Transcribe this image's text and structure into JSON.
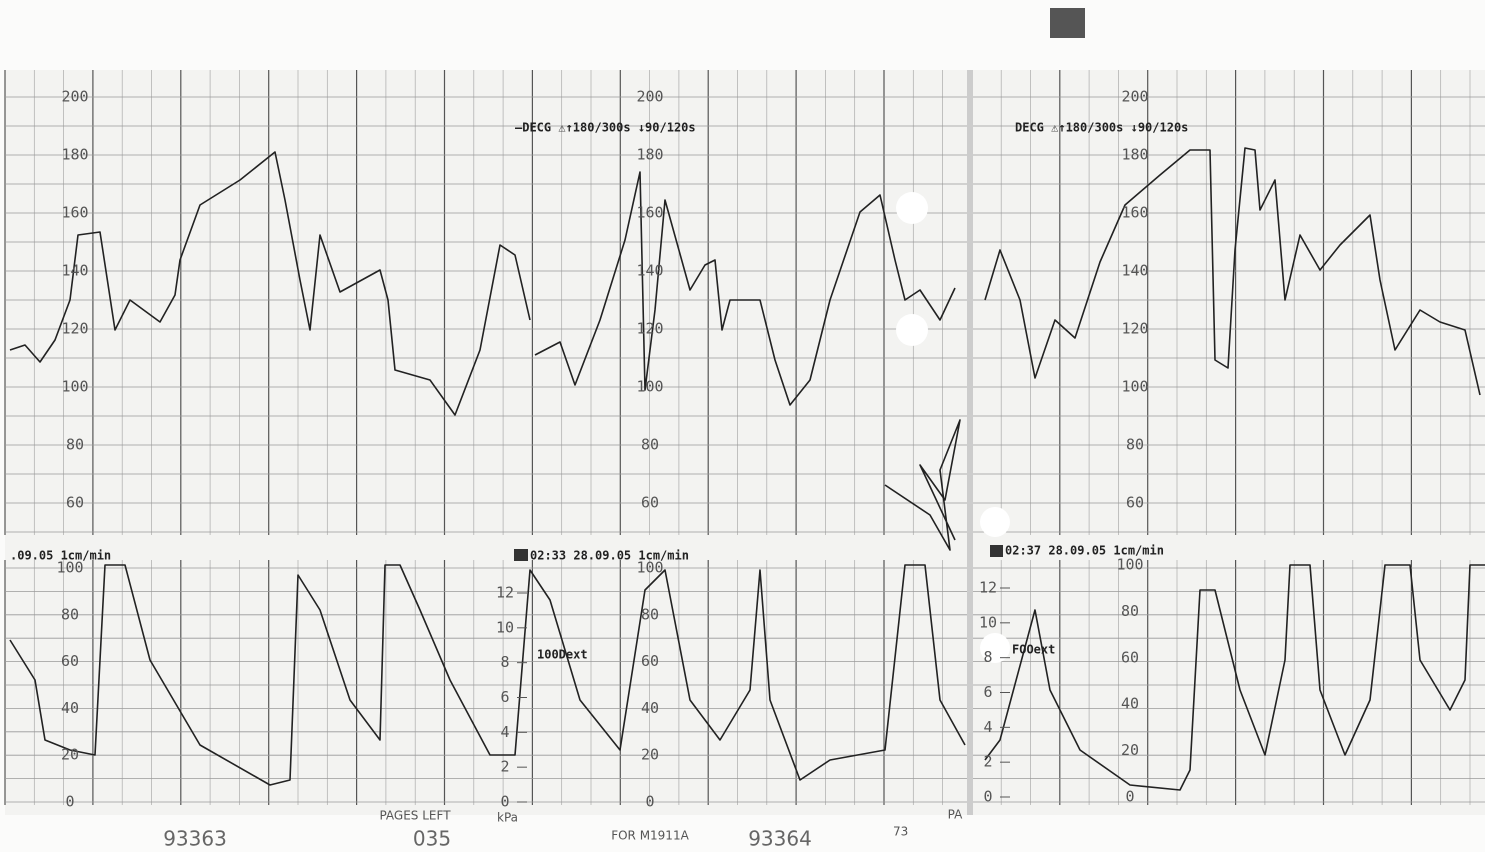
{
  "panels": [
    {
      "fhr_scale": [
        200,
        180,
        160,
        140,
        120,
        100,
        80,
        60
      ],
      "ua_scale": [
        100,
        80,
        60,
        40,
        20,
        0
      ]
    },
    {
      "fhr_scale": [
        200,
        180,
        160,
        140,
        120,
        100,
        80,
        60
      ],
      "ua_scale": [
        100,
        80,
        60,
        40,
        20,
        0
      ],
      "kpa_scale": [
        12,
        10,
        8,
        6,
        4,
        2,
        0
      ],
      "kpa_unit": "kPa",
      "mode_label": "—DECG ⚠↑180/300s ↓90/120s",
      "time_label": "02:33 28.09.05 1cm/min",
      "ext_label": "100Dext"
    },
    {
      "fhr_scale": [
        200,
        180,
        160,
        140,
        120,
        100,
        80,
        60
      ],
      "ua_scale": [
        100,
        80,
        60,
        40,
        20,
        0
      ],
      "kpa_scale": [
        12,
        10,
        8,
        6,
        4,
        2,
        0
      ],
      "mode_label": "DECG ⚠↑180/300s ↓90/120s",
      "time_label": "02:37 28.09.05 1cm/min",
      "ext_label": "FOOext"
    }
  ],
  "left_time_label": ".09.05 1cm/min",
  "footer": {
    "page_a": "93363",
    "pages_left_label": "PAGES LEFT",
    "pages_left": "035",
    "model": "FOR M1911A",
    "page_b": "93364",
    "note": "73",
    "corner": "PA"
  }
}
